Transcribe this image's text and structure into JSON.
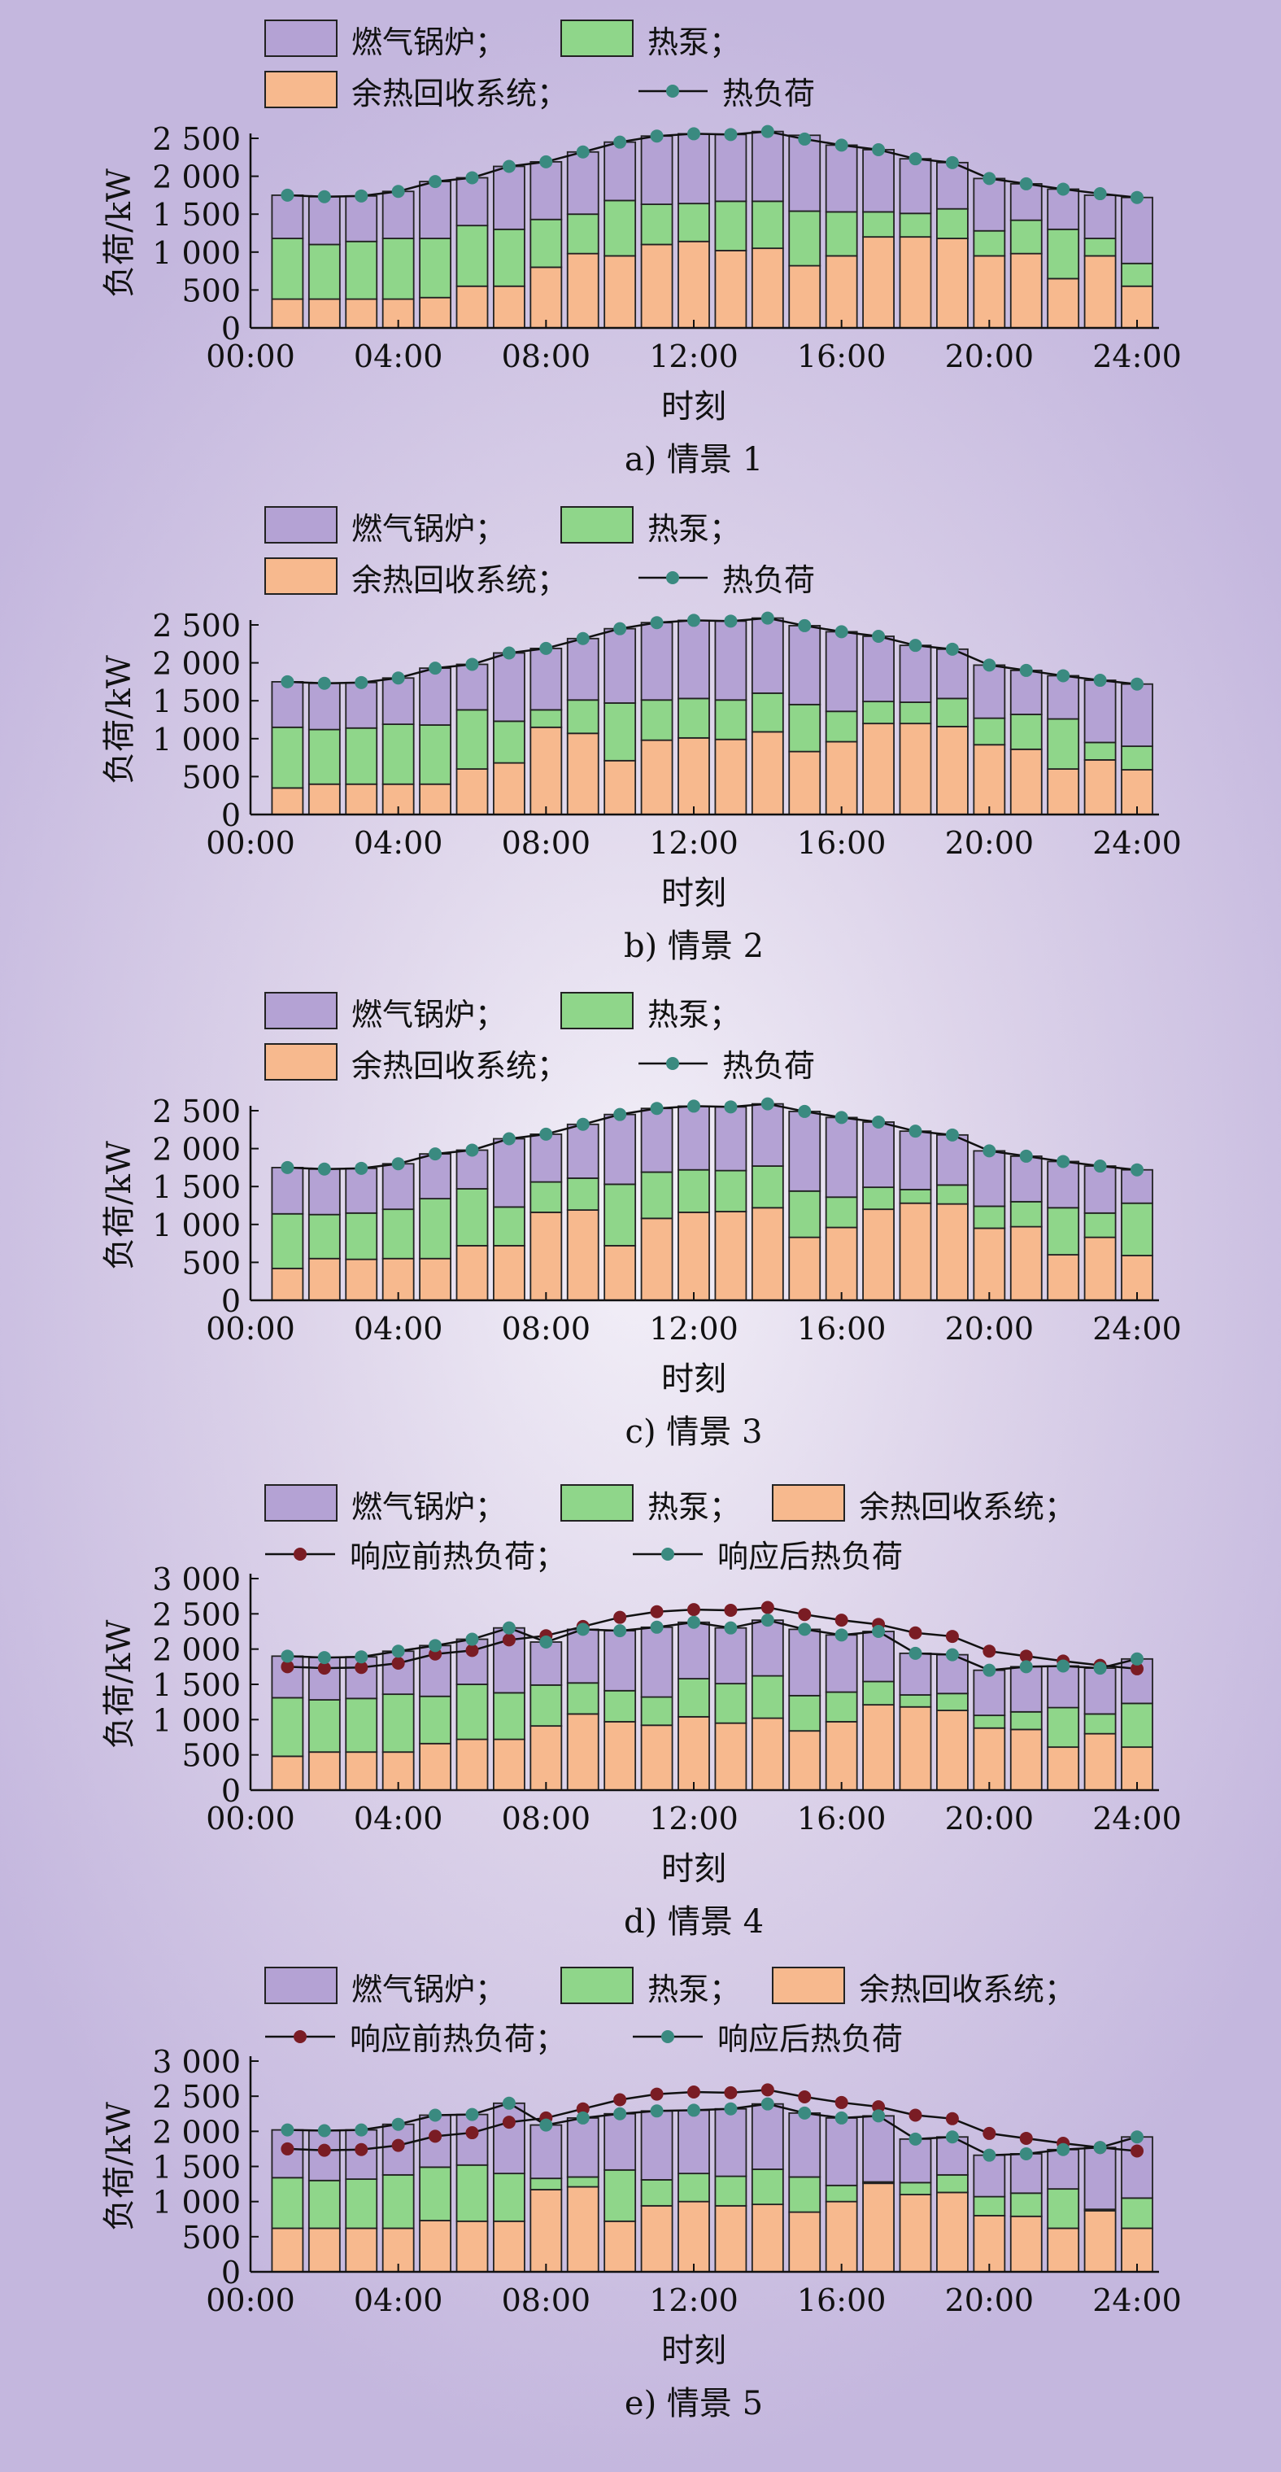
{
  "colors": {
    "gas_boiler": "#b4a2d4",
    "heat_pump": "#8fd68a",
    "waste_heat": "#f7b98e",
    "load_after": "#3a8a80",
    "load_before": "#7a1c24",
    "bar_edge": "#222222"
  },
  "chart_data": [
    {
      "type": "bar",
      "stacked": true,
      "xlabel": "时刻",
      "ylabel": "负荷/kW",
      "caption": "a) 情景 1",
      "ylim": [
        0,
        2500
      ],
      "yticks": [
        0,
        500,
        1000,
        1500,
        2000,
        2500
      ],
      "ytick_labels": [
        "0",
        "500",
        "1 000",
        "1 500",
        "2 000",
        "2 500"
      ],
      "xticks": [
        "00:00",
        "04:00",
        "08:00",
        "12:00",
        "16:00",
        "20:00",
        "24:00"
      ],
      "legend_rows": [
        [
          "燃气锅炉；",
          "热泵；"
        ],
        [
          "余热回收系统；",
          "热负荷"
        ]
      ],
      "hours": [
        1,
        2,
        3,
        4,
        5,
        6,
        7,
        8,
        9,
        10,
        11,
        12,
        13,
        14,
        15,
        16,
        17,
        18,
        19,
        20,
        21,
        22,
        23,
        24
      ],
      "series": [
        {
          "name": "余热回收系统；",
          "values": [
            380,
            380,
            380,
            380,
            400,
            550,
            550,
            800,
            980,
            950,
            1100,
            1140,
            1020,
            1050,
            820,
            950,
            1200,
            1200,
            1180,
            950,
            980,
            650,
            950,
            550
          ]
        },
        {
          "name": "热泵；",
          "values": [
            800,
            720,
            760,
            800,
            780,
            800,
            750,
            630,
            520,
            730,
            530,
            500,
            650,
            620,
            720,
            580,
            330,
            310,
            390,
            330,
            440,
            650,
            230,
            300
          ]
        },
        {
          "name": "燃气锅炉；",
          "values": [
            570,
            630,
            600,
            620,
            750,
            630,
            830,
            760,
            820,
            770,
            900,
            920,
            880,
            920,
            1000,
            880,
            820,
            720,
            610,
            690,
            480,
            530,
            570,
            870
          ]
        }
      ],
      "lines": [
        {
          "name": "热负荷",
          "values": [
            1750,
            1730,
            1740,
            1800,
            1930,
            1980,
            2130,
            2190,
            2320,
            2450,
            2530,
            2560,
            2550,
            2590,
            2490,
            2410,
            2350,
            2230,
            2180,
            1970,
            1900,
            1830,
            1770,
            1720
          ]
        }
      ]
    },
    {
      "type": "bar",
      "stacked": true,
      "xlabel": "时刻",
      "ylabel": "负荷/kW",
      "caption": "b) 情景 2",
      "ylim": [
        0,
        2500
      ],
      "yticks": [
        0,
        500,
        1000,
        1500,
        2000,
        2500
      ],
      "ytick_labels": [
        "0",
        "500",
        "1 000",
        "1 500",
        "2 000",
        "2 500"
      ],
      "xticks": [
        "00:00",
        "04:00",
        "08:00",
        "12:00",
        "16:00",
        "20:00",
        "24:00"
      ],
      "legend_rows": [
        [
          "燃气锅炉；",
          "热泵；"
        ],
        [
          "余热回收系统；",
          "热负荷"
        ]
      ],
      "hours": [
        1,
        2,
        3,
        4,
        5,
        6,
        7,
        8,
        9,
        10,
        11,
        12,
        13,
        14,
        15,
        16,
        17,
        18,
        19,
        20,
        21,
        22,
        23,
        24
      ],
      "series": [
        {
          "name": "余热回收系统；",
          "values": [
            350,
            400,
            400,
            400,
            400,
            600,
            680,
            1150,
            1070,
            710,
            980,
            1010,
            990,
            1090,
            830,
            960,
            1200,
            1200,
            1160,
            920,
            860,
            600,
            720,
            590
          ]
        },
        {
          "name": "热泵；",
          "values": [
            800,
            720,
            740,
            790,
            780,
            780,
            550,
            230,
            440,
            760,
            530,
            520,
            520,
            510,
            620,
            400,
            290,
            280,
            370,
            350,
            460,
            660,
            230,
            310
          ]
        },
        {
          "name": "燃气锅炉；",
          "values": [
            600,
            610,
            600,
            610,
            750,
            600,
            900,
            810,
            810,
            980,
            1020,
            1030,
            1040,
            990,
            1040,
            1050,
            860,
            750,
            650,
            700,
            580,
            570,
            820,
            820
          ]
        }
      ],
      "lines": [
        {
          "name": "热负荷",
          "values": [
            1750,
            1730,
            1740,
            1800,
            1930,
            1980,
            2130,
            2190,
            2320,
            2450,
            2530,
            2560,
            2550,
            2590,
            2490,
            2410,
            2350,
            2230,
            2180,
            1970,
            1900,
            1830,
            1770,
            1720
          ]
        }
      ]
    },
    {
      "type": "bar",
      "stacked": true,
      "xlabel": "时刻",
      "ylabel": "负荷/kW",
      "caption": "c) 情景 3",
      "ylim": [
        0,
        2500
      ],
      "yticks": [
        0,
        500,
        1000,
        1500,
        2000,
        2500
      ],
      "ytick_labels": [
        "0",
        "500",
        "1 000",
        "1 500",
        "2 000",
        "2 500"
      ],
      "xticks": [
        "00:00",
        "04:00",
        "08:00",
        "12:00",
        "16:00",
        "20:00",
        "24:00"
      ],
      "legend_rows": [
        [
          "燃气锅炉；",
          "热泵；"
        ],
        [
          "余热回收系统；",
          "热负荷"
        ]
      ],
      "hours": [
        1,
        2,
        3,
        4,
        5,
        6,
        7,
        8,
        9,
        10,
        11,
        12,
        13,
        14,
        15,
        16,
        17,
        18,
        19,
        20,
        21,
        22,
        23,
        24
      ],
      "series": [
        {
          "name": "余热回收系统；",
          "values": [
            420,
            550,
            540,
            550,
            550,
            720,
            720,
            1160,
            1190,
            720,
            1080,
            1160,
            1170,
            1220,
            830,
            960,
            1200,
            1280,
            1270,
            950,
            970,
            600,
            830,
            590
          ]
        },
        {
          "name": "热泵；",
          "values": [
            720,
            580,
            610,
            650,
            790,
            750,
            510,
            400,
            420,
            810,
            610,
            560,
            540,
            550,
            610,
            400,
            290,
            180,
            250,
            290,
            330,
            620,
            320,
            690
          ]
        },
        {
          "name": "燃气锅炉；",
          "values": [
            610,
            600,
            590,
            600,
            590,
            510,
            900,
            630,
            710,
            920,
            840,
            840,
            840,
            820,
            1050,
            1050,
            860,
            770,
            660,
            730,
            600,
            610,
            620,
            440
          ]
        }
      ],
      "lines": [
        {
          "name": "热负荷",
          "values": [
            1750,
            1730,
            1740,
            1800,
            1930,
            1980,
            2130,
            2190,
            2320,
            2450,
            2530,
            2560,
            2550,
            2590,
            2490,
            2410,
            2350,
            2230,
            2180,
            1970,
            1900,
            1830,
            1770,
            1720
          ]
        }
      ]
    },
    {
      "type": "bar",
      "stacked": true,
      "xlabel": "时刻",
      "ylabel": "负荷/kW",
      "caption": "d) 情景 4",
      "ylim": [
        0,
        3000
      ],
      "yticks": [
        0,
        500,
        1000,
        1500,
        2000,
        2500,
        3000
      ],
      "ytick_labels": [
        "0",
        "500",
        "1 000",
        "1 500",
        "2 000",
        "2 500",
        "3 000"
      ],
      "xticks": [
        "00:00",
        "04:00",
        "08:00",
        "12:00",
        "16:00",
        "20:00",
        "24:00"
      ],
      "legend_rows": [
        [
          "燃气锅炉；",
          "热泵；",
          "余热回收系统；"
        ],
        [
          "响应前热负荷；",
          "响应后热负荷"
        ]
      ],
      "hours": [
        1,
        2,
        3,
        4,
        5,
        6,
        7,
        8,
        9,
        10,
        11,
        12,
        13,
        14,
        15,
        16,
        17,
        18,
        19,
        20,
        21,
        22,
        23,
        24
      ],
      "series": [
        {
          "name": "余热回收系统；",
          "values": [
            480,
            540,
            540,
            540,
            660,
            720,
            720,
            910,
            1080,
            970,
            920,
            1040,
            950,
            1020,
            840,
            970,
            1210,
            1180,
            1130,
            880,
            860,
            610,
            800,
            610
          ]
        },
        {
          "name": "热泵；",
          "values": [
            830,
            740,
            760,
            820,
            670,
            780,
            660,
            580,
            440,
            440,
            400,
            540,
            560,
            600,
            500,
            420,
            330,
            170,
            240,
            180,
            250,
            560,
            280,
            620
          ]
        },
        {
          "name": "燃气锅炉；",
          "values": [
            590,
            600,
            590,
            610,
            720,
            640,
            920,
            610,
            760,
            850,
            990,
            800,
            790,
            790,
            940,
            810,
            710,
            590,
            550,
            640,
            640,
            590,
            650,
            630
          ]
        }
      ],
      "lines": [
        {
          "name": "响应前热负荷；",
          "values": [
            1750,
            1730,
            1740,
            1800,
            1930,
            1980,
            2130,
            2190,
            2320,
            2450,
            2530,
            2560,
            2550,
            2590,
            2490,
            2410,
            2350,
            2230,
            2180,
            1970,
            1900,
            1830,
            1770,
            1720
          ]
        },
        {
          "name": "响应后热负荷",
          "values": [
            1900,
            1880,
            1890,
            1970,
            2050,
            2140,
            2300,
            2100,
            2280,
            2260,
            2310,
            2380,
            2300,
            2410,
            2280,
            2200,
            2250,
            1940,
            1920,
            1700,
            1750,
            1760,
            1730,
            1860
          ]
        }
      ]
    },
    {
      "type": "bar",
      "stacked": true,
      "xlabel": "时刻",
      "ylabel": "负荷/kW",
      "caption": "e) 情景 5",
      "ylim": [
        0,
        3000
      ],
      "yticks": [
        0,
        500,
        1000,
        1500,
        2000,
        2500,
        3000
      ],
      "ytick_labels": [
        "0",
        "500",
        "1 000",
        "1 500",
        "2 000",
        "2 500",
        "3 000"
      ],
      "xticks": [
        "00:00",
        "04:00",
        "08:00",
        "12:00",
        "16:00",
        "20:00",
        "24:00"
      ],
      "legend_rows": [
        [
          "燃气锅炉；",
          "热泵；",
          "余热回收系统；"
        ],
        [
          "响应前热负荷；",
          "响应后热负荷"
        ]
      ],
      "hours": [
        1,
        2,
        3,
        4,
        5,
        6,
        7,
        8,
        9,
        10,
        11,
        12,
        13,
        14,
        15,
        16,
        17,
        18,
        19,
        20,
        21,
        22,
        23,
        24
      ],
      "series": [
        {
          "name": "余热回收系统；",
          "values": [
            620,
            620,
            620,
            620,
            730,
            720,
            720,
            1170,
            1210,
            720,
            940,
            1000,
            940,
            960,
            850,
            1000,
            1260,
            1100,
            1130,
            800,
            790,
            620,
            870,
            620
          ]
        },
        {
          "name": "热泵；",
          "values": [
            720,
            680,
            700,
            760,
            760,
            800,
            680,
            160,
            140,
            730,
            370,
            400,
            420,
            500,
            500,
            230,
            20,
            170,
            250,
            270,
            330,
            560,
            20,
            430
          ]
        },
        {
          "name": "燃气锅炉；",
          "values": [
            680,
            710,
            700,
            720,
            740,
            720,
            1000,
            760,
            840,
            800,
            980,
            900,
            960,
            930,
            910,
            960,
            940,
            620,
            540,
            590,
            560,
            560,
            880,
            870
          ]
        }
      ],
      "lines": [
        {
          "name": "响应前热负荷；",
          "values": [
            1750,
            1730,
            1740,
            1800,
            1930,
            1980,
            2130,
            2190,
            2320,
            2450,
            2530,
            2560,
            2550,
            2590,
            2490,
            2410,
            2350,
            2230,
            2180,
            1970,
            1900,
            1830,
            1770,
            1720
          ]
        },
        {
          "name": "响应后热负荷",
          "values": [
            2020,
            2010,
            2020,
            2100,
            2230,
            2240,
            2400,
            2090,
            2190,
            2250,
            2290,
            2300,
            2320,
            2390,
            2260,
            2190,
            2220,
            1890,
            1920,
            1660,
            1680,
            1740,
            1770,
            1920
          ]
        }
      ]
    }
  ]
}
